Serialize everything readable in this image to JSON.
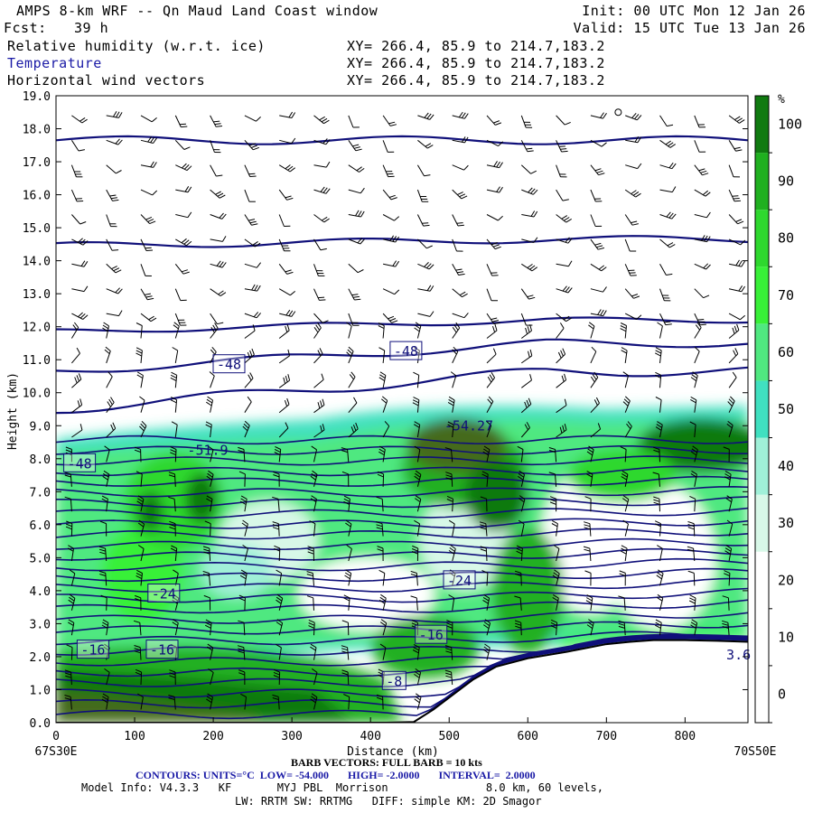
{
  "header": {
    "title": "AMPS 8-km WRF -- Qn Maud Land Coast window",
    "init": "Init: 00 UTC Mon 12 Jan 26",
    "fcst_label": "Fcst:",
    "fcst_value": "39 h",
    "valid": "Valid: 15 UTC Tue 13 Jan 26",
    "fields": [
      {
        "name": "Relative humidity (w.r.t. ice)",
        "xy": "XY= 266.4, 85.9 to 214.7,183.2"
      },
      {
        "name": "Temperature",
        "xy": "XY= 266.4, 85.9 to 214.7,183.2"
      },
      {
        "name": "Horizontal wind vectors",
        "xy": "XY= 266.4, 85.9 to 214.7,183.2"
      }
    ]
  },
  "colors": {
    "temperature_contour": "#10107a",
    "fill_levels": [
      "#ffffff",
      "#ffffff",
      "#ffffff",
      "#d8f8e8",
      "#a0f0d8",
      "#40e0c0",
      "#50e880",
      "#38f038",
      "#2ed82e",
      "#20b020",
      "#107a10",
      "#456a1a"
    ]
  },
  "chart_data": {
    "type": "heatmap",
    "description_fields": [
      "relative humidity fill",
      "temperature contours",
      "wind barbs"
    ],
    "xlabel": "Distance (km)",
    "ylabel": "Height (km)",
    "xlim": [
      0,
      880
    ],
    "ylim": [
      0,
      19
    ],
    "x_ticks": [
      0,
      100,
      200,
      300,
      400,
      500,
      600,
      700,
      800
    ],
    "y_ticks": [
      "0.0",
      "1.0",
      "2.0",
      "3.0",
      "4.0",
      "5.0",
      "6.0",
      "7.0",
      "8.0",
      "9.0",
      "10.0",
      "11.0",
      "12.0",
      "13.0",
      "14.0",
      "15.0",
      "16.0",
      "17.0",
      "18.0",
      "19.0"
    ],
    "left_endpoint": "67S30E",
    "right_endpoint": "70S50E",
    "colorbar": {
      "unit": "%",
      "ticks": [
        "0",
        "10",
        "20",
        "30",
        "40",
        "50",
        "60",
        "70",
        "80",
        "90",
        "100"
      ],
      "levels": [
        0,
        10,
        20,
        30,
        40,
        50,
        60,
        70,
        80,
        90,
        100,
        110
      ]
    },
    "temperature_labels": [
      {
        "text": "-48",
        "x": 220,
        "y": 10.85
      },
      {
        "text": "-48",
        "x": 445,
        "y": 11.25
      },
      {
        "text": "-48",
        "x": 30,
        "y": 7.85
      },
      {
        "text": "-24",
        "x": 137,
        "y": 3.9
      },
      {
        "text": "-24",
        "x": 513,
        "y": 4.3
      },
      {
        "text": "-16",
        "x": 47,
        "y": 2.2
      },
      {
        "text": "-16",
        "x": 135,
        "y": 2.2
      },
      {
        "text": "-16",
        "x": 477,
        "y": 2.65
      },
      {
        "text": "-8",
        "x": 430,
        "y": 1.25
      },
      {
        "text": "-51.9",
        "x": 193,
        "y": 8.25
      },
      {
        "text": "-54.27",
        "x": 525,
        "y": 9.0
      },
      {
        "text": "3.6",
        "x": 868,
        "y": 2.05
      }
    ],
    "terrain_height_km": [
      [
        0,
        0
      ],
      [
        420,
        0
      ],
      [
        455,
        0.02
      ],
      [
        480,
        0.4
      ],
      [
        505,
        0.85
      ],
      [
        530,
        1.3
      ],
      [
        560,
        1.7
      ],
      [
        600,
        1.95
      ],
      [
        650,
        2.15
      ],
      [
        700,
        2.38
      ],
      [
        730,
        2.45
      ],
      [
        760,
        2.5
      ],
      [
        800,
        2.5
      ],
      [
        840,
        2.48
      ],
      [
        880,
        2.45
      ]
    ],
    "contour_height_km": [
      {
        "base": 17.65,
        "rise": 0.0,
        "wave": 0.12
      },
      {
        "base": 14.45,
        "rise": 0.2,
        "wave": 0.1
      },
      {
        "base": 11.85,
        "rise": 0.35,
        "wave": 0.08
      },
      {
        "base": 10.65,
        "rise": 0.85,
        "wave": 0.12
      },
      {
        "base": 9.5,
        "rise": 1.15,
        "wave": 0.15
      }
    ],
    "low_level_contour_count": 27
  },
  "footer": {
    "barb_line": "BARB VECTORS: FULL BARB = 10 kts",
    "contours_line": "CONTOURS: UNITS=°C  LOW= -54.000       HIGH= -2.0000       INTERVAL=  2.0000",
    "model_line1": "Model Info: V4.3.3   KF       MYJ PBL  Morrison               8.0 km, 60 levels,",
    "model_line2": "LW: RRTM SW: RRTMG   DIFF: simple KM: 2D Smagor"
  }
}
